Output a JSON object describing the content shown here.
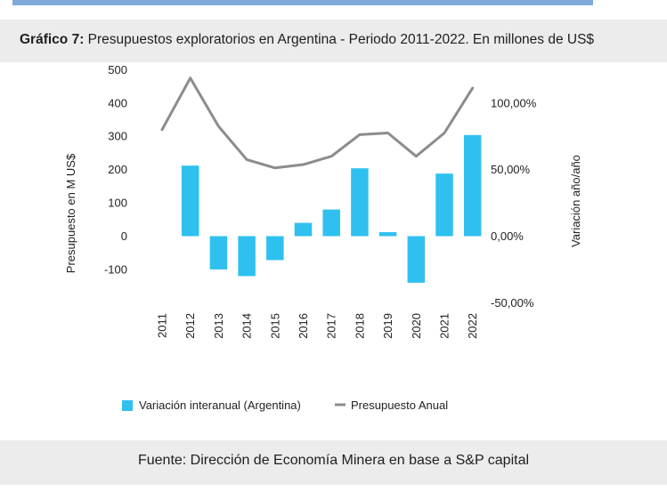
{
  "header": {
    "title_bold": "Gráfico 7:",
    "title_text": " Presupuestos exploratorios en Argentina - Periodo 2011-2022. En millones de US$"
  },
  "footer": {
    "source": "Fuente: Dirección de Economía Minera en base a S&P capital"
  },
  "colors": {
    "bar": "#2fc0ef",
    "line": "#8c8c8c",
    "header_bg": "#ececec"
  },
  "chart_data": {
    "type": "bar",
    "title": "Presupuestos exploratorios en Argentina - Periodo 2011-2022. En millones de US$",
    "categories": [
      "2011",
      "2012",
      "2013",
      "2014",
      "2015",
      "2016",
      "2017",
      "2018",
      "2019",
      "2020",
      "2021",
      "2022"
    ],
    "ylabel_left": "Presupuesto en M US$",
    "ylabel_right": "Variación año/año",
    "left_ticks": [
      "500",
      "400",
      "300",
      "200",
      "100",
      "0",
      "-100"
    ],
    "right_ticks": [
      "100,00%",
      "50,00%",
      "0,00%",
      "-50,00%"
    ],
    "left_ylim": [
      -100,
      500
    ],
    "right_ylim": [
      -50,
      100
    ],
    "series": [
      {
        "name": "Variación interanual (Argentina)",
        "kind": "bar",
        "axis": "right",
        "values": [
          null,
          53,
          -25,
          -30,
          -18,
          10,
          20,
          51,
          3,
          -35,
          47,
          76
        ]
      },
      {
        "name": "Presupuesto Anual",
        "kind": "line",
        "axis": "left",
        "values": [
          320,
          475,
          330,
          230,
          205,
          215,
          240,
          305,
          310,
          240,
          310,
          445
        ]
      }
    ],
    "legend": [
      "Variación interanual (Argentina)",
      "Presupuesto Anual"
    ],
    "legend_position": "bottom"
  }
}
